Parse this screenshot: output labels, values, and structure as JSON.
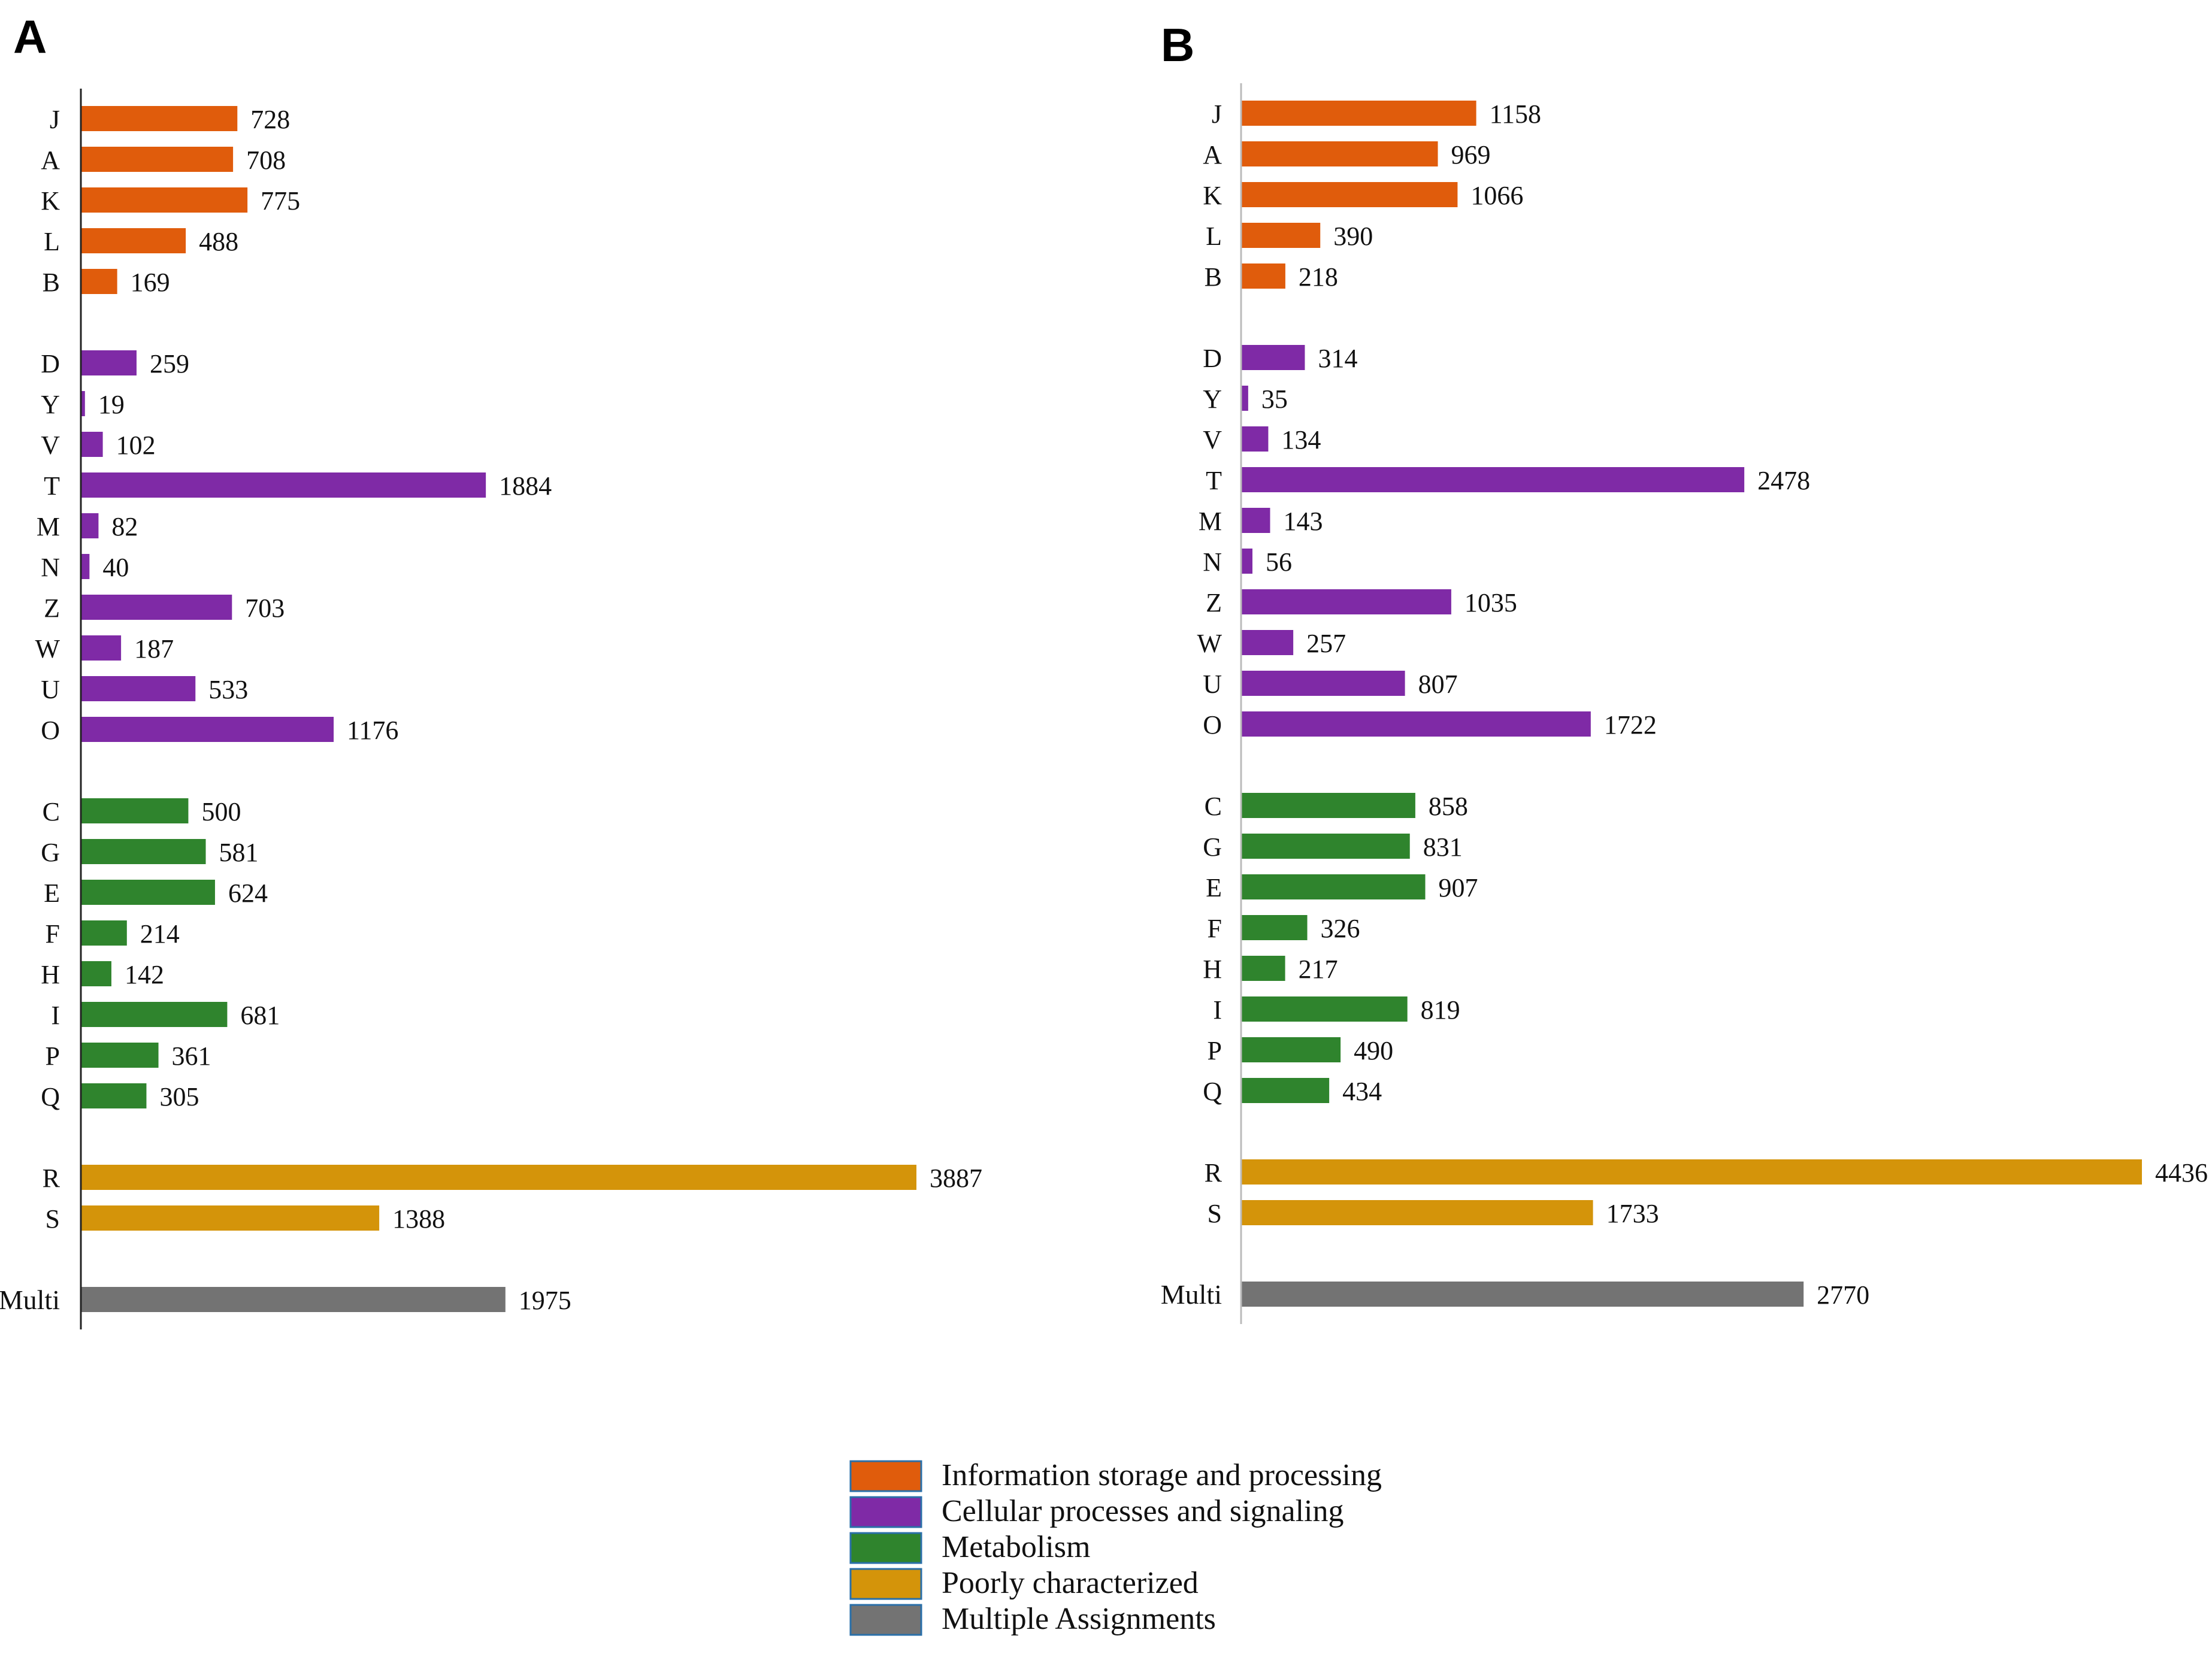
{
  "figure": {
    "panel_labels": [
      "A",
      "B"
    ]
  },
  "chart_data": [
    {
      "type": "bar",
      "orientation": "horizontal",
      "panel": "A",
      "title": "",
      "xlabel": "",
      "ylabel": "",
      "xlim": [
        0,
        3887
      ],
      "grid": false,
      "groups": [
        {
          "group": "info",
          "categories": [
            "J",
            "A",
            "K",
            "L",
            "B"
          ],
          "values": [
            728,
            708,
            775,
            488,
            169
          ]
        },
        {
          "group": "cell",
          "categories": [
            "D",
            "Y",
            "V",
            "T",
            "M",
            "N",
            "Z",
            "W",
            "U",
            "O"
          ],
          "values": [
            259,
            19,
            102,
            1884,
            82,
            40,
            703,
            187,
            533,
            1176
          ]
        },
        {
          "group": "metab",
          "categories": [
            "C",
            "G",
            "E",
            "F",
            "H",
            "I",
            "P",
            "Q"
          ],
          "values": [
            500,
            581,
            624,
            214,
            142,
            681,
            361,
            305
          ]
        },
        {
          "group": "poor",
          "categories": [
            "R",
            "S"
          ],
          "values": [
            3887,
            1388
          ]
        },
        {
          "group": "multi",
          "categories": [
            "Multi"
          ],
          "values": [
            1975
          ]
        }
      ]
    },
    {
      "type": "bar",
      "orientation": "horizontal",
      "panel": "B",
      "title": "",
      "xlabel": "",
      "ylabel": "",
      "xlim": [
        0,
        4436
      ],
      "grid": false,
      "groups": [
        {
          "group": "info",
          "categories": [
            "J",
            "A",
            "K",
            "L",
            "B"
          ],
          "values": [
            1158,
            969,
            1066,
            390,
            218
          ]
        },
        {
          "group": "cell",
          "categories": [
            "D",
            "Y",
            "V",
            "T",
            "M",
            "N",
            "Z",
            "W",
            "U",
            "O"
          ],
          "values": [
            314,
            35,
            134,
            2478,
            143,
            56,
            1035,
            257,
            807,
            1722
          ]
        },
        {
          "group": "metab",
          "categories": [
            "C",
            "G",
            "E",
            "F",
            "H",
            "I",
            "P",
            "Q"
          ],
          "values": [
            858,
            831,
            907,
            326,
            217,
            819,
            490,
            434
          ]
        },
        {
          "group": "poor",
          "categories": [
            "R",
            "S"
          ],
          "values": [
            4436,
            1733
          ]
        },
        {
          "group": "multi",
          "categories": [
            "Multi"
          ],
          "values": [
            2770
          ]
        }
      ]
    }
  ],
  "legend": {
    "placement": "bottom-center",
    "items": [
      {
        "key": "info",
        "label": "Information storage and processing",
        "color": "#e05c0c"
      },
      {
        "key": "cell",
        "label": "Cellular processes and signaling",
        "color": "#7f2aa6"
      },
      {
        "key": "metab",
        "label": "Metabolism",
        "color": "#2f842d"
      },
      {
        "key": "poor",
        "label": "Poorly characterized",
        "color": "#d4940a"
      },
      {
        "key": "multi",
        "label": "Multiple Assignments",
        "color": "#737373"
      }
    ]
  }
}
